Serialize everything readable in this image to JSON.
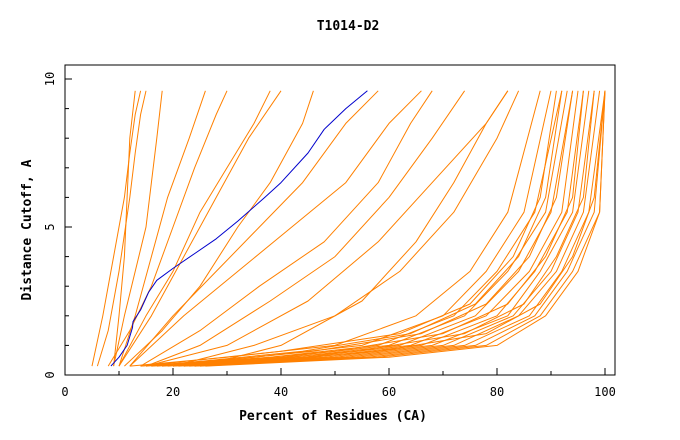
{
  "chart_data": {
    "type": "line",
    "title": "T1014-D2",
    "xlabel": "Percent of Residues (CA)",
    "ylabel": "Distance Cutoff, A",
    "xlim": [
      0,
      100
    ],
    "ylim": [
      0,
      10
    ],
    "x_ticks": [
      "0",
      "20",
      "40",
      "60",
      "80",
      "100"
    ],
    "y_ticks": [
      "0",
      "5",
      "10"
    ],
    "grid": false,
    "legend": "none",
    "colors": {
      "highlight": "#0000cc",
      "others": "#ff8000"
    },
    "highlight_series": {
      "x": [
        8.5,
        10,
        11.5,
        12.5,
        12.6,
        14,
        15,
        15.5,
        17,
        20,
        24,
        28,
        32,
        37,
        40,
        45,
        48,
        52,
        56
      ],
      "y": [
        0.3,
        0.6,
        1.0,
        1.6,
        1.8,
        2.2,
        2.6,
        2.8,
        3.2,
        3.6,
        4.1,
        4.6,
        5.2,
        6.0,
        6.5,
        7.5,
        8.3,
        9.0,
        9.6
      ]
    },
    "series": [
      {
        "x": [
          5,
          7,
          9,
          11,
          12,
          13,
          14
        ],
        "y": [
          0.3,
          2,
          4,
          6,
          7.5,
          8.8,
          9.6
        ]
      },
      {
        "x": [
          6,
          8,
          10,
          12,
          13,
          14,
          15
        ],
        "y": [
          0.3,
          1.5,
          3.5,
          6,
          7.5,
          8.8,
          9.6
        ]
      },
      {
        "x": [
          9,
          10,
          11,
          11.5,
          12,
          13
        ],
        "y": [
          0.3,
          2,
          4,
          6,
          8,
          9.6
        ]
      },
      {
        "x": [
          9,
          11,
          13,
          15,
          16,
          17,
          18
        ],
        "y": [
          0.3,
          2,
          3.5,
          5,
          6.5,
          8,
          9.6
        ]
      },
      {
        "x": [
          10,
          13,
          16,
          19,
          23,
          26
        ],
        "y": [
          0.3,
          2,
          4,
          6,
          8,
          9.6
        ]
      },
      {
        "x": [
          8,
          12,
          16,
          20,
          24,
          28,
          30
        ],
        "y": [
          0.3,
          1.5,
          3,
          5,
          7,
          8.8,
          9.6
        ]
      },
      {
        "x": [
          10,
          15,
          20,
          25,
          30,
          35,
          38
        ],
        "y": [
          0.3,
          2,
          3.5,
          5.5,
          7,
          8.5,
          9.6
        ]
      },
      {
        "x": [
          10,
          16,
          22,
          28,
          34,
          40
        ],
        "y": [
          0.3,
          2,
          4,
          6,
          8,
          9.6
        ]
      },
      {
        "x": [
          11,
          18,
          25,
          32,
          38,
          44,
          46
        ],
        "y": [
          0.3,
          1.5,
          3,
          5,
          6.5,
          8.5,
          9.6
        ]
      },
      {
        "x": [
          12,
          20,
          28,
          36,
          44,
          52,
          58
        ],
        "y": [
          0.3,
          2,
          3.5,
          5,
          6.5,
          8.5,
          9.6
        ]
      },
      {
        "x": [
          12,
          22,
          32,
          42,
          52,
          60,
          66
        ],
        "y": [
          0.3,
          2,
          3.5,
          5,
          6.5,
          8.5,
          9.6
        ]
      },
      {
        "x": [
          14,
          25,
          36,
          48,
          58,
          64,
          68
        ],
        "y": [
          0.3,
          1.5,
          3,
          4.5,
          6.5,
          8.5,
          9.6
        ]
      },
      {
        "x": [
          15,
          25,
          38,
          50,
          60,
          68,
          74
        ],
        "y": [
          0.3,
          1,
          2.5,
          4,
          6,
          8,
          9.6
        ]
      },
      {
        "x": [
          15,
          30,
          45,
          58,
          68,
          78,
          82
        ],
        "y": [
          0.3,
          1,
          2.5,
          4.5,
          6.5,
          8.5,
          9.6
        ]
      },
      {
        "x": [
          20,
          35,
          50,
          62,
          72,
          80,
          84
        ],
        "y": [
          0.3,
          1,
          2,
          3.5,
          5.5,
          8,
          9.6
        ]
      },
      {
        "x": [
          25,
          40,
          55,
          65,
          72,
          78,
          82
        ],
        "y": [
          0.3,
          1,
          2.5,
          4.5,
          6.5,
          8.5,
          9.6
        ]
      },
      {
        "x": [
          12,
          30,
          50,
          65,
          75,
          82,
          88
        ],
        "y": [
          0.3,
          0.6,
          1.0,
          2.0,
          3.5,
          5.5,
          9.6
        ]
      },
      {
        "x": [
          14,
          35,
          55,
          70,
          78,
          85,
          90
        ],
        "y": [
          0.3,
          0.6,
          1.0,
          2.0,
          3.5,
          5.5,
          9.6
        ]
      },
      {
        "x": [
          15,
          38,
          58,
          72,
          80,
          87,
          92
        ],
        "y": [
          0.3,
          0.6,
          1.0,
          2.0,
          3.5,
          5.5,
          9.6
        ]
      },
      {
        "x": [
          16,
          40,
          60,
          74,
          82,
          89,
          93
        ],
        "y": [
          0.3,
          0.6,
          1.0,
          2.0,
          3.5,
          5.5,
          9.6
        ]
      },
      {
        "x": [
          17,
          42,
          62,
          76,
          84,
          90,
          94
        ],
        "y": [
          0.3,
          0.6,
          1.0,
          2.0,
          3.5,
          5.5,
          9.6
        ]
      },
      {
        "x": [
          18,
          44,
          64,
          78,
          86,
          92,
          95
        ],
        "y": [
          0.3,
          0.6,
          1.0,
          2.0,
          3.5,
          5.5,
          9.6
        ]
      },
      {
        "x": [
          19,
          46,
          66,
          80,
          87,
          93,
          96
        ],
        "y": [
          0.3,
          0.6,
          1.0,
          2.0,
          3.5,
          5.5,
          9.6
        ]
      },
      {
        "x": [
          20,
          48,
          68,
          82,
          88,
          94,
          97
        ],
        "y": [
          0.3,
          0.6,
          1.0,
          2.0,
          3.5,
          5.5,
          9.6
        ]
      },
      {
        "x": [
          21,
          50,
          70,
          83,
          90,
          95,
          98
        ],
        "y": [
          0.3,
          0.6,
          1.0,
          2.0,
          3.5,
          5.5,
          9.6
        ]
      },
      {
        "x": [
          22,
          52,
          72,
          84,
          91,
          96,
          99
        ],
        "y": [
          0.3,
          0.6,
          1.0,
          2.0,
          3.5,
          5.5,
          9.6
        ]
      },
      {
        "x": [
          23,
          54,
          74,
          86,
          92,
          97,
          100
        ],
        "y": [
          0.3,
          0.6,
          1.0,
          2.0,
          3.5,
          5.5,
          9.6
        ]
      },
      {
        "x": [
          24,
          56,
          76,
          87,
          93,
          98,
          100
        ],
        "y": [
          0.3,
          0.6,
          1.0,
          2.0,
          3.5,
          5.5,
          9.6
        ]
      },
      {
        "x": [
          25,
          58,
          78,
          88,
          94,
          99,
          100
        ],
        "y": [
          0.3,
          0.6,
          1.0,
          2.0,
          3.5,
          5.5,
          9.6
        ]
      },
      {
        "x": [
          26,
          60,
          80,
          89,
          95,
          99,
          100
        ],
        "y": [
          0.3,
          0.6,
          1.0,
          2.0,
          3.5,
          5.5,
          9.6
        ]
      },
      {
        "x": [
          14,
          40,
          62,
          75,
          83,
          88,
          91
        ],
        "y": [
          0.3,
          0.8,
          1.4,
          2.4,
          4.0,
          6.0,
          9.6
        ]
      },
      {
        "x": [
          16,
          44,
          64,
          76,
          84,
          89,
          92
        ],
        "y": [
          0.3,
          0.8,
          1.4,
          2.4,
          4.0,
          6.0,
          9.6
        ]
      },
      {
        "x": [
          18,
          46,
          66,
          78,
          86,
          91,
          94
        ],
        "y": [
          0.3,
          0.8,
          1.4,
          2.4,
          4.0,
          6.0,
          9.6
        ]
      },
      {
        "x": [
          20,
          50,
          70,
          82,
          89,
          94,
          96
        ],
        "y": [
          0.3,
          0.8,
          1.4,
          2.4,
          4.0,
          6.0,
          9.6
        ]
      },
      {
        "x": [
          22,
          54,
          74,
          85,
          91,
          96,
          98
        ],
        "y": [
          0.3,
          0.8,
          1.4,
          2.4,
          4.0,
          6.0,
          9.6
        ]
      },
      {
        "x": [
          24,
          58,
          78,
          88,
          94,
          98,
          100
        ],
        "y": [
          0.3,
          0.8,
          1.4,
          2.4,
          4.0,
          6.0,
          9.6
        ]
      }
    ]
  }
}
